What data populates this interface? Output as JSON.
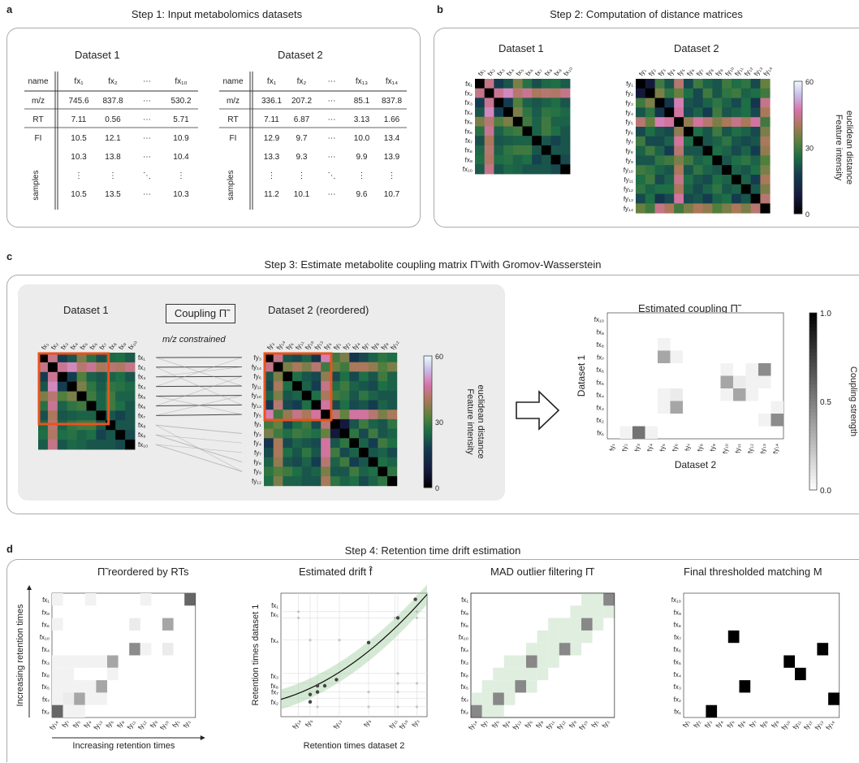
{
  "panels": {
    "a": {
      "letter": "a",
      "title": "Step 1: Input metabolomics datasets",
      "dataset1": {
        "name": "Dataset 1",
        "cols": [
          "fx₁",
          "fx₂",
          "⋯",
          "fx₁₀"
        ],
        "rows": [
          {
            "label": "m/z",
            "values": [
              "745.6",
              "837.8",
              "⋯",
              "530.2"
            ]
          },
          {
            "label": "RT",
            "values": [
              "7.11",
              "0.56",
              "⋯",
              "5.71"
            ]
          },
          {
            "label": "FI",
            "values": [
              "10.5",
              "12.1",
              "⋯",
              "10.9"
            ]
          },
          {
            "label": "",
            "values": [
              "10.3",
              "13.8",
              "⋯",
              "10.4"
            ]
          },
          {
            "label": "",
            "values": [
              "⋮",
              "⋮",
              "⋱",
              "⋮"
            ]
          },
          {
            "label": "",
            "values": [
              "10.5",
              "13.5",
              "⋯",
              "10.3"
            ]
          }
        ]
      },
      "dataset2": {
        "name": "Dataset 2",
        "cols": [
          "fx₁",
          "fx₂",
          "⋯",
          "fx₁₃",
          "fx₁₄"
        ],
        "rows": [
          {
            "label": "m/z",
            "values": [
              "336.1",
              "207.2",
              "⋯",
              "85.1",
              "837.8"
            ]
          },
          {
            "label": "RT",
            "values": [
              "7.11",
              "6.87",
              "⋯",
              "3.13",
              "1.66"
            ]
          },
          {
            "label": "FI",
            "values": [
              "12.9",
              "9.7",
              "⋯",
              "10.0",
              "13.4"
            ]
          },
          {
            "label": "",
            "values": [
              "13.3",
              "9.3",
              "⋯",
              "9.9",
              "13.9"
            ]
          },
          {
            "label": "",
            "values": [
              "⋮",
              "⋮",
              "⋱",
              "⋮",
              "⋮"
            ]
          },
          {
            "label": "",
            "values": [
              "11.2",
              "10.1",
              "⋯",
              "9.6",
              "10.7"
            ]
          }
        ]
      },
      "name_header": "name",
      "samples_label": "samples"
    },
    "b": {
      "letter": "b",
      "title": "Step 2: Computation of distance matrices",
      "dataset1": "Dataset 1",
      "dataset2": "Dataset 2",
      "colorbar_label_line1": "Feature intensity",
      "colorbar_label_line2": "euclidean distance",
      "colorbar_ticks": [
        "60",
        "30",
        "0"
      ]
    },
    "c": {
      "letter": "c",
      "title": "Step 3: Estimate metabolite coupling matrix Π̃ with Gromov-Wasserstein",
      "dataset1": "Dataset 1",
      "coupling_box": "Coupling Π̃",
      "constraint": "m/z constrained",
      "dataset2": "Dataset 2 (reordered)",
      "colorbar_label_line1": "Feature intensity",
      "colorbar_label_line2": "euclidean distance",
      "colorbar_ticks": [
        "60",
        "30",
        "0"
      ],
      "coupling_title": "Estimated coupling Π̃",
      "coupling_ylabel": "Dataset 1",
      "coupling_xlabel": "Dataset 2",
      "coupling_cbar_label": "Coupling strength",
      "coupling_cbar_ticks": [
        "1.0",
        "0.5",
        "0.0"
      ]
    },
    "d": {
      "letter": "d",
      "title": "Step 4: Retention time drift estimation",
      "p1_title": "Π̃ reordered by RTs",
      "p1_ylabel": "Increasing retention times",
      "p1_xlabel": "Increasing retention times",
      "p2_title": "Estimated drift f̂",
      "p2_ylabel": "Retention times dataset 1",
      "p2_xlabel": "Retention times dataset 2",
      "p3_title": "MAD outlier filtering Π̂",
      "p4_title": "Final thresholded matching M"
    }
  },
  "labels": {
    "fx": [
      "fx₁",
      "fx₂",
      "fx₃",
      "fx₄",
      "fx₅",
      "fx₆",
      "fx₇",
      "fx₈",
      "fx₉",
      "fx₁₀"
    ],
    "fy": [
      "fy₁",
      "fy₂",
      "fy₃",
      "fy₄",
      "fy₅",
      "fy₆",
      "fy₇",
      "fy₈",
      "fy₉",
      "fy₁₀",
      "fy₁₁",
      "fy₁₂",
      "fy₁₃",
      "fy₁₄"
    ],
    "c_fx_order": [
      "fx₁",
      "fx₂",
      "fx₃",
      "fx₄",
      "fx₅",
      "fx₆",
      "fx₇",
      "fx₈",
      "fx₉",
      "fx₁₀"
    ],
    "c_fy_order": [
      "fy₃",
      "fy₁₄",
      "fy₆",
      "fy₁₁",
      "fy₁₀",
      "fy₁₃",
      "fy₅",
      "fy₁",
      "fy₂",
      "fy₄",
      "fy₇",
      "fy₈",
      "fy₉",
      "fy₁₂"
    ],
    "d_rows_top_down": [
      "fx₁",
      "fx₉",
      "fx₆",
      "fx₁₀",
      "fx₄",
      "fx₃",
      "fx₈",
      "fx₅",
      "fx₇",
      "fx₂"
    ],
    "d_cols": [
      "fy₁₄",
      "fy₇",
      "fy₅",
      "fy₄",
      "fy₁₃",
      "fy₆",
      "fy₈",
      "fy₁₁",
      "fy₁₂",
      "fy₉",
      "fy₁₀",
      "fy₁",
      "fy₃"
    ],
    "d2_xticks": [
      "fy₁₄",
      "fy₅",
      "fy₁₃",
      "fy₆",
      "fy₁₁",
      "fy₁₀",
      "fy₃"
    ],
    "d2_yticks": [
      "fx₁",
      "fx₅",
      "fx₄",
      "fx₃",
      "fx₈",
      "fx₇",
      "fx₂"
    ]
  },
  "chart_data": [
    {
      "type": "heatmap",
      "name": "b1",
      "rows": 10,
      "cols": 10,
      "matrix": [
        [
          0,
          44,
          18,
          22,
          36,
          27,
          21,
          25,
          26,
          23
        ],
        [
          44,
          0,
          45,
          49,
          42,
          45,
          40,
          42,
          41,
          44
        ],
        [
          18,
          45,
          0,
          18,
          32,
          24,
          22,
          24,
          26,
          22
        ],
        [
          22,
          49,
          18,
          0,
          36,
          28,
          23,
          28,
          27,
          25
        ],
        [
          36,
          42,
          32,
          36,
          0,
          30,
          24,
          30,
          24,
          24
        ],
        [
          27,
          45,
          24,
          28,
          30,
          0,
          24,
          30,
          26,
          22
        ],
        [
          21,
          40,
          22,
          23,
          24,
          24,
          0,
          22,
          19,
          22
        ],
        [
          25,
          42,
          24,
          28,
          30,
          30,
          22,
          0,
          22,
          22
        ],
        [
          26,
          41,
          26,
          27,
          24,
          26,
          19,
          22,
          0,
          20
        ],
        [
          23,
          44,
          22,
          25,
          24,
          22,
          22,
          22,
          20,
          0
        ]
      ]
    },
    {
      "type": "heatmap",
      "name": "b2",
      "rows": 14,
      "cols": 14,
      "matrix": [
        [
          0,
          8,
          30,
          22,
          42,
          20,
          30,
          24,
          22,
          30,
          26,
          28,
          20,
          34
        ],
        [
          8,
          0,
          36,
          28,
          34,
          26,
          20,
          30,
          22,
          28,
          30,
          24,
          26,
          30
        ],
        [
          30,
          36,
          0,
          16,
          48,
          22,
          20,
          24,
          28,
          24,
          20,
          26,
          16,
          44
        ],
        [
          22,
          28,
          16,
          0,
          46,
          20,
          24,
          18,
          30,
          22,
          24,
          26,
          20,
          40
        ],
        [
          42,
          34,
          48,
          46,
          0,
          38,
          46,
          42,
          36,
          40,
          44,
          40,
          46,
          30
        ],
        [
          20,
          26,
          22,
          20,
          38,
          0,
          26,
          22,
          30,
          22,
          26,
          24,
          20,
          36
        ],
        [
          30,
          20,
          20,
          24,
          46,
          26,
          0,
          22,
          24,
          28,
          22,
          20,
          22,
          40
        ],
        [
          24,
          30,
          24,
          18,
          42,
          22,
          22,
          0,
          26,
          24,
          20,
          24,
          18,
          38
        ],
        [
          22,
          22,
          28,
          30,
          36,
          30,
          24,
          26,
          0,
          22,
          26,
          28,
          24,
          32
        ],
        [
          30,
          28,
          24,
          22,
          40,
          22,
          28,
          24,
          22,
          0,
          24,
          22,
          26,
          36
        ],
        [
          26,
          30,
          20,
          24,
          44,
          26,
          22,
          20,
          26,
          24,
          0,
          24,
          18,
          40
        ],
        [
          28,
          24,
          26,
          26,
          40,
          24,
          20,
          24,
          28,
          22,
          24,
          0,
          22,
          36
        ],
        [
          20,
          26,
          16,
          20,
          46,
          20,
          22,
          18,
          24,
          26,
          18,
          22,
          0,
          42
        ],
        [
          34,
          30,
          44,
          40,
          30,
          36,
          40,
          38,
          32,
          36,
          40,
          36,
          42,
          0
        ]
      ]
    },
    {
      "type": "heatmap",
      "name": "c_coupling",
      "rows_bottom_up": [
        "fx₁",
        "fx₂",
        "fx₃",
        "fx₄",
        "fx₅",
        "fx₆",
        "fx₇",
        "fx₈",
        "fx₉",
        "fx₁₀"
      ],
      "cols": [
        "fy₁",
        "fy₂",
        "fy₃",
        "fy₄",
        "fy₅",
        "fy₆",
        "fy₇",
        "fy₈",
        "fy₉",
        "fy₁₀",
        "fy₁₁",
        "fy₁₂",
        "fy₁₃",
        "fy₁₄"
      ],
      "matrix_bottom_up": [
        [
          0.0,
          0.05,
          0.55,
          0.05,
          0,
          0,
          0,
          0,
          0,
          0,
          0,
          0,
          0,
          0
        ],
        [
          0,
          0,
          0,
          0,
          0,
          0,
          0,
          0,
          0,
          0,
          0,
          0,
          0.05,
          0.45
        ],
        [
          0,
          0,
          0,
          0,
          0.05,
          0.35,
          0,
          0,
          0,
          0,
          0,
          0,
          0,
          0.05
        ],
        [
          0,
          0,
          0,
          0,
          0.05,
          0.08,
          0,
          0,
          0,
          0.05,
          0.35,
          0.05,
          0,
          0
        ],
        [
          0,
          0,
          0,
          0,
          0,
          0,
          0,
          0,
          0,
          0.35,
          0.08,
          0.05,
          0.05,
          0
        ],
        [
          0,
          0,
          0,
          0,
          0,
          0,
          0,
          0,
          0,
          0.05,
          0,
          0.05,
          0.45,
          0
        ],
        [
          0,
          0,
          0,
          0,
          0.35,
          0.05,
          0,
          0,
          0,
          0,
          0,
          0,
          0,
          0
        ],
        [
          0,
          0,
          0,
          0,
          0.05,
          0,
          0,
          0,
          0,
          0,
          0,
          0,
          0,
          0
        ],
        [
          0,
          0,
          0,
          0,
          0,
          0,
          0,
          0,
          0,
          0,
          0,
          0,
          0,
          0
        ],
        [
          0,
          0,
          0,
          0,
          0,
          0,
          0,
          0,
          0,
          0,
          0,
          0,
          0,
          0
        ]
      ],
      "vmin": 0,
      "vmax": 1
    },
    {
      "type": "heatmap",
      "name": "d1",
      "matrix_top_down": [
        [
          0.05,
          0,
          0,
          0.05,
          0,
          0,
          0,
          0,
          0.05,
          0,
          0,
          0,
          0.6
        ],
        [
          0,
          0,
          0,
          0,
          0,
          0,
          0,
          0,
          0,
          0,
          0,
          0,
          0
        ],
        [
          0.05,
          0,
          0,
          0,
          0,
          0,
          0,
          0.08,
          0,
          0,
          0.35,
          0,
          0
        ],
        [
          0,
          0,
          0,
          0,
          0,
          0,
          0,
          0,
          0,
          0,
          0,
          0,
          0
        ],
        [
          0,
          0,
          0,
          0,
          0,
          0,
          0,
          0.45,
          0.05,
          0,
          0.08,
          0,
          0
        ],
        [
          0.05,
          0.05,
          0.05,
          0.05,
          0.05,
          0.35,
          0,
          0,
          0,
          0,
          0,
          0,
          0
        ],
        [
          0.05,
          0.05,
          0,
          0,
          0,
          0.05,
          0,
          0,
          0,
          0,
          0,
          0,
          0
        ],
        [
          0.05,
          0.05,
          0.05,
          0.05,
          0.35,
          0,
          0,
          0,
          0,
          0,
          0,
          0,
          0
        ],
        [
          0.05,
          0.08,
          0.35,
          0.05,
          0.05,
          0,
          0,
          0,
          0,
          0,
          0,
          0,
          0
        ],
        [
          0.6,
          0.05,
          0.05,
          0,
          0,
          0,
          0,
          0,
          0,
          0,
          0,
          0,
          0
        ]
      ]
    },
    {
      "type": "scatter",
      "name": "d2",
      "points": [
        [
          0.2,
          0.12
        ],
        [
          0.2,
          0.18
        ],
        [
          0.25,
          0.2
        ],
        [
          0.25,
          0.25
        ],
        [
          0.3,
          0.25
        ],
        [
          0.38,
          0.3
        ],
        [
          0.6,
          0.6
        ],
        [
          0.8,
          0.8
        ],
        [
          0.92,
          0.95
        ]
      ]
    },
    {
      "type": "heatmap",
      "name": "d3",
      "cells_top_down": [
        [
          0,
          12
        ],
        [
          2,
          10
        ],
        [
          4,
          8
        ],
        [
          5,
          5
        ],
        [
          7,
          4
        ],
        [
          8,
          2
        ],
        [
          9,
          0
        ]
      ]
    },
    {
      "type": "heatmap",
      "name": "d4",
      "matched_rows_bottom_up_cols": [
        [
          0,
          2
        ],
        [
          1,
          13
        ],
        [
          2,
          5
        ],
        [
          3,
          10
        ],
        [
          4,
          9
        ],
        [
          5,
          12
        ],
        [
          6,
          4
        ]
      ]
    }
  ]
}
